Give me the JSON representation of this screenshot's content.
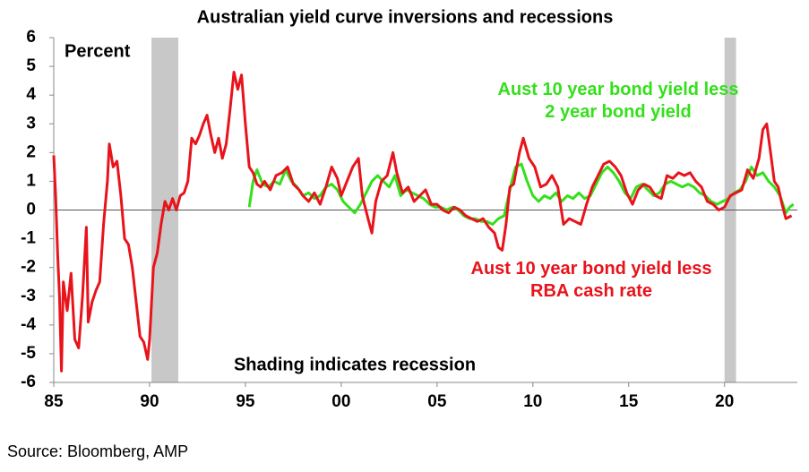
{
  "chart_data": {
    "type": "line",
    "title": "Australian yield curve inversions and recessions",
    "y_label": "Percent",
    "annotation": "Shading indicates recession",
    "source": "Source: Bloomberg, AMP",
    "xlim": [
      1985,
      2023.8
    ],
    "ylim": [
      -6,
      6
    ],
    "xticks": [
      {
        "value": 1985,
        "label": "85"
      },
      {
        "value": 1990,
        "label": "90"
      },
      {
        "value": 1995,
        "label": "95"
      },
      {
        "value": 2000,
        "label": "00"
      },
      {
        "value": 2005,
        "label": "05"
      },
      {
        "value": 2010,
        "label": "10"
      },
      {
        "value": 2015,
        "label": "15"
      },
      {
        "value": 2020,
        "label": "20"
      }
    ],
    "yticks": [
      -6,
      -5,
      -4,
      -3,
      -2,
      -1,
      0,
      1,
      2,
      3,
      4,
      5,
      6
    ],
    "recessions": [
      [
        1990.1,
        1991.5
      ],
      [
        2020.0,
        2020.6
      ]
    ],
    "recession_color": "#c8c8c8",
    "series": [
      {
        "name": "Aust 10 year bond yield less RBA cash rate",
        "color": "#e8131b",
        "x": [
          1985.0,
          1985.1,
          1985.2,
          1985.3,
          1985.4,
          1985.5,
          1985.7,
          1985.9,
          1986.1,
          1986.3,
          1986.5,
          1986.7,
          1986.8,
          1987.0,
          1987.2,
          1987.4,
          1987.6,
          1987.8,
          1987.9,
          1988.1,
          1988.3,
          1988.5,
          1988.7,
          1988.9,
          1989.1,
          1989.3,
          1989.5,
          1989.7,
          1989.9,
          1990.0,
          1990.2,
          1990.4,
          1990.6,
          1990.8,
          1991.0,
          1991.2,
          1991.4,
          1991.6,
          1991.8,
          1992.0,
          1992.2,
          1992.4,
          1992.6,
          1992.8,
          1993.0,
          1993.2,
          1993.4,
          1993.6,
          1993.8,
          1994.0,
          1994.2,
          1994.4,
          1994.6,
          1994.8,
          1995.0,
          1995.2,
          1995.4,
          1995.6,
          1995.8,
          1996.0,
          1996.3,
          1996.6,
          1996.9,
          1997.2,
          1997.5,
          1997.8,
          1998.0,
          1998.3,
          1998.6,
          1998.9,
          1999.2,
          1999.5,
          1999.8,
          2000.0,
          2000.3,
          2000.6,
          2000.9,
          2001.1,
          2001.4,
          2001.6,
          2001.8,
          2002.1,
          2002.4,
          2002.7,
          2002.9,
          2003.2,
          2003.5,
          2003.8,
          2004.1,
          2004.4,
          2004.7,
          2005.0,
          2005.3,
          2005.6,
          2005.9,
          2006.2,
          2006.5,
          2006.8,
          2007.1,
          2007.4,
          2007.7,
          2008.0,
          2008.2,
          2008.4,
          2008.6,
          2008.8,
          2009.0,
          2009.3,
          2009.5,
          2009.8,
          2010.1,
          2010.4,
          2010.7,
          2011.0,
          2011.3,
          2011.6,
          2011.9,
          2012.2,
          2012.5,
          2012.8,
          2013.1,
          2013.4,
          2013.7,
          2014.0,
          2014.3,
          2014.6,
          2014.9,
          2015.2,
          2015.5,
          2015.8,
          2016.1,
          2016.4,
          2016.7,
          2017.0,
          2017.3,
          2017.6,
          2017.9,
          2018.2,
          2018.5,
          2018.8,
          2019.1,
          2019.4,
          2019.7,
          2020.0,
          2020.3,
          2020.6,
          2020.9,
          2021.2,
          2021.5,
          2021.8,
          2022.0,
          2022.2,
          2022.4,
          2022.6,
          2022.8,
          2023.0,
          2023.2,
          2023.5
        ],
        "values": [
          1.9,
          0.5,
          -1.5,
          -3,
          -5.6,
          -2.5,
          -3.5,
          -2.2,
          -4.5,
          -4.8,
          -3,
          -0.6,
          -3.9,
          -3.2,
          -2.8,
          -2.5,
          -0.5,
          1.0,
          2.3,
          1.5,
          1.7,
          0.5,
          -1.0,
          -1.2,
          -2.0,
          -3.2,
          -4.4,
          -4.6,
          -5.2,
          -4.5,
          -2,
          -1.5,
          -0.5,
          0.3,
          0.0,
          0.4,
          0.0,
          0.5,
          0.6,
          1.0,
          2.5,
          2.3,
          2.6,
          3.0,
          3.3,
          2.6,
          2.0,
          2.5,
          1.8,
          2.3,
          3.5,
          4.8,
          4.2,
          4.7,
          3.0,
          1.5,
          1.3,
          0.9,
          0.8,
          1.0,
          0.7,
          1.2,
          1.3,
          1.5,
          0.9,
          0.7,
          0.5,
          0.3,
          0.6,
          0.2,
          0.8,
          1.5,
          1.1,
          0.5,
          1.0,
          1.5,
          1.8,
          0.5,
          -0.3,
          -0.8,
          0.3,
          1.0,
          1.2,
          2.0,
          1.3,
          0.6,
          0.8,
          0.3,
          0.5,
          0.7,
          0.2,
          0.2,
          0.0,
          -0.1,
          0.1,
          0.0,
          -0.2,
          -0.3,
          -0.4,
          -0.3,
          -0.6,
          -0.8,
          -1.3,
          -1.4,
          -0.5,
          0.8,
          0.9,
          2.0,
          2.5,
          1.8,
          1.5,
          0.8,
          0.9,
          1.2,
          0.8,
          -0.5,
          -0.3,
          -0.4,
          -0.5,
          0.2,
          0.8,
          1.2,
          1.6,
          1.7,
          1.5,
          1.2,
          0.6,
          0.2,
          0.7,
          0.9,
          0.8,
          0.5,
          0.4,
          1.2,
          1.1,
          1.3,
          1.2,
          1.3,
          1.0,
          0.8,
          0.3,
          0.2,
          0.0,
          0.1,
          0.5,
          0.6,
          0.7,
          1.4,
          1.1,
          1.8,
          2.8,
          3.0,
          2.0,
          1.0,
          0.8,
          0.2,
          -0.3,
          -0.2
        ]
      },
      {
        "name": "Aust 10 year bond yield less 2 year bond yield",
        "color": "#33e01a",
        "x": [
          1995.2,
          1995.4,
          1995.6,
          1995.9,
          1996.2,
          1996.5,
          1996.8,
          1997.1,
          1997.4,
          1997.7,
          1998.0,
          1998.3,
          1998.6,
          1998.9,
          1999.2,
          1999.5,
          1999.8,
          2000.1,
          2000.4,
          2000.7,
          2001.0,
          2001.3,
          2001.6,
          2001.9,
          2002.2,
          2002.5,
          2002.8,
          2003.1,
          2003.4,
          2003.7,
          2004.0,
          2004.3,
          2004.6,
          2004.9,
          2005.2,
          2005.5,
          2005.8,
          2006.1,
          2006.4,
          2006.7,
          2007.0,
          2007.3,
          2007.6,
          2007.9,
          2008.2,
          2008.5,
          2008.7,
          2008.9,
          2009.1,
          2009.4,
          2009.7,
          2010.0,
          2010.3,
          2010.6,
          2010.9,
          2011.2,
          2011.5,
          2011.8,
          2012.1,
          2012.4,
          2012.7,
          2013.0,
          2013.3,
          2013.6,
          2013.9,
          2014.2,
          2014.5,
          2014.8,
          2015.1,
          2015.4,
          2015.7,
          2016.0,
          2016.3,
          2016.6,
          2016.9,
          2017.2,
          2017.5,
          2017.8,
          2018.1,
          2018.4,
          2018.7,
          2019.0,
          2019.3,
          2019.6,
          2019.9,
          2020.2,
          2020.5,
          2020.8,
          2021.1,
          2021.4,
          2021.7,
          2022.0,
          2022.3,
          2022.6,
          2022.9,
          2023.2,
          2023.4,
          2023.6
        ],
        "values": [
          0.1,
          1.0,
          1.4,
          0.9,
          0.8,
          1.0,
          0.9,
          1.4,
          1.0,
          0.8,
          0.5,
          0.6,
          0.4,
          0.5,
          0.8,
          0.9,
          0.7,
          0.3,
          0.1,
          -0.1,
          0.2,
          0.6,
          1.0,
          1.2,
          1.0,
          0.8,
          1.2,
          0.5,
          0.7,
          0.6,
          0.5,
          0.4,
          0.2,
          0.1,
          0.1,
          0.0,
          0.1,
          0.0,
          -0.2,
          -0.3,
          -0.3,
          -0.4,
          -0.4,
          -0.5,
          -0.3,
          -0.2,
          0.4,
          1.0,
          1.5,
          1.6,
          1.0,
          0.5,
          0.3,
          0.5,
          0.4,
          0.6,
          0.3,
          0.5,
          0.4,
          0.6,
          0.4,
          0.5,
          0.9,
          1.3,
          1.5,
          1.3,
          1.0,
          0.6,
          0.4,
          0.8,
          0.9,
          0.7,
          0.5,
          0.6,
          0.9,
          1.0,
          0.9,
          0.8,
          0.9,
          0.8,
          0.6,
          0.5,
          0.3,
          0.2,
          0.3,
          0.4,
          0.6,
          0.7,
          1.0,
          1.5,
          1.2,
          1.3,
          1.0,
          0.8,
          0.5,
          -0.1,
          0.1,
          0.2
        ]
      }
    ]
  }
}
